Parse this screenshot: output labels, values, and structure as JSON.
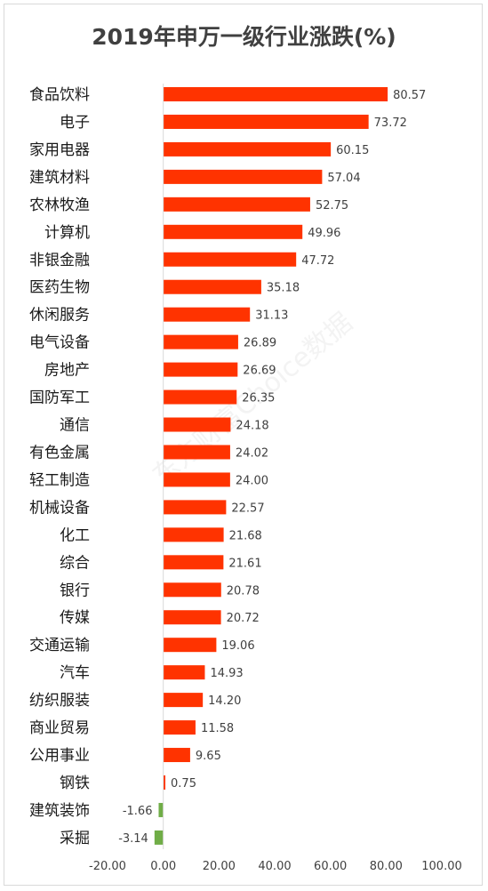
{
  "chart_data": {
    "type": "bar",
    "orientation": "horizontal",
    "title": "2019年申万一级行业涨跌(%)",
    "categories": [
      "食品饮料",
      "电子",
      "家用电器",
      "建筑材料",
      "农林牧渔",
      "计算机",
      "非银金融",
      "医药生物",
      "休闲服务",
      "电气设备",
      "房地产",
      "国防军工",
      "通信",
      "有色金属",
      "轻工制造",
      "机械设备",
      "化工",
      "综合",
      "银行",
      "传媒",
      "交通运输",
      "汽车",
      "纺织服装",
      "商业贸易",
      "公用事业",
      "钢铁",
      "建筑装饰",
      "采掘"
    ],
    "values": [
      80.57,
      73.72,
      60.15,
      57.04,
      52.75,
      49.96,
      47.72,
      35.18,
      31.13,
      26.89,
      26.69,
      26.35,
      24.18,
      24.02,
      24.0,
      22.57,
      21.68,
      21.61,
      20.78,
      20.72,
      19.06,
      14.93,
      14.2,
      11.58,
      9.65,
      0.75,
      -1.66,
      -3.14
    ],
    "value_labels": [
      "80.57",
      "73.72",
      "60.15",
      "57.04",
      "52.75",
      "49.96",
      "47.72",
      "35.18",
      "31.13",
      "26.89",
      "26.69",
      "26.35",
      "24.18",
      "24.02",
      "24.00",
      "22.57",
      "21.68",
      "21.61",
      "20.78",
      "20.72",
      "19.06",
      "14.93",
      "14.20",
      "11.58",
      "9.65",
      "0.75",
      "-1.66",
      "-3.14"
    ],
    "xlim": [
      -20,
      100
    ],
    "x_ticks": [
      -20,
      0,
      20,
      40,
      60,
      80,
      100
    ],
    "x_tick_labels": [
      "-20.00",
      "0.00",
      "20.00",
      "40.00",
      "60.00",
      "80.00",
      "100.00"
    ],
    "grid": false,
    "colors": {
      "positive": "#ff3300",
      "negative": "#70ad47"
    }
  },
  "watermark": "东方财富Choice数据"
}
